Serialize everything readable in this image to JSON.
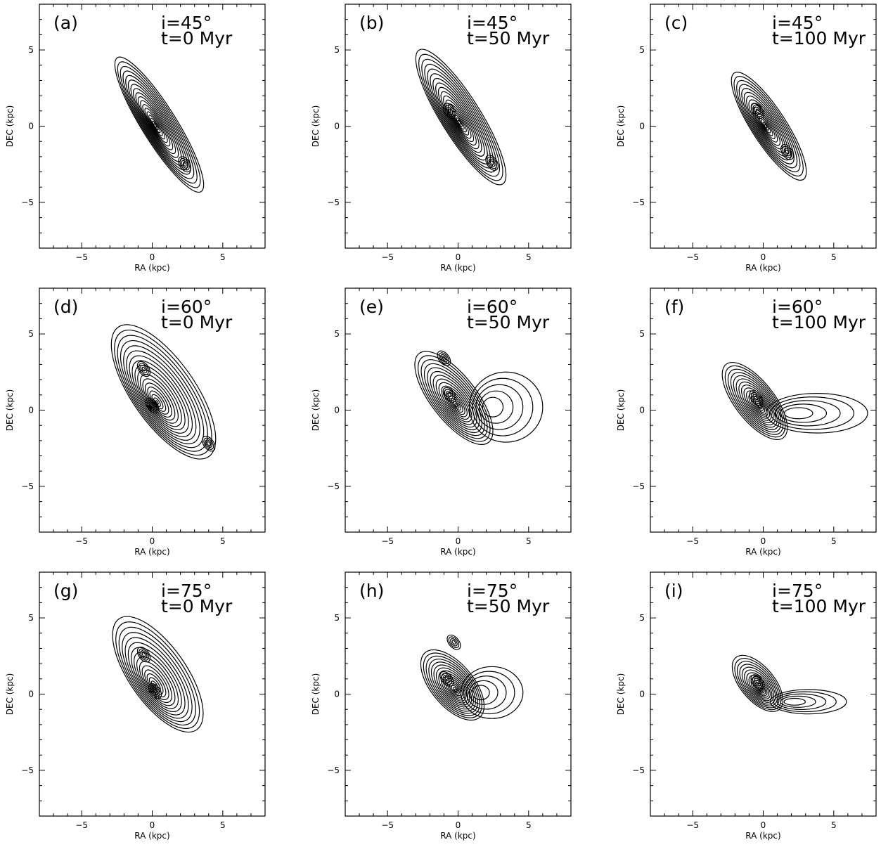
{
  "chart_data": {
    "type": "contour",
    "xlabel": "RA (kpc)",
    "ylabel": "DEC (kpc)",
    "xlim": [
      -8,
      8
    ],
    "ylim": [
      -8,
      8
    ],
    "major_ticks": [
      -5,
      0,
      5
    ],
    "tick_labels": [
      "−5",
      "0",
      "5"
    ],
    "grid": false,
    "panels": [
      {
        "label": "(a)",
        "inclination": "i=45°",
        "time": "t=0 Myr",
        "pa_deg": 32,
        "semi_major_kpc": 5.6,
        "axis_ratio": 0.22,
        "center": [
          0.5,
          0.1
        ],
        "levels": 18,
        "knots": [
          [
            2.3,
            -2.5
          ]
        ],
        "plume": null
      },
      {
        "label": "(b)",
        "inclination": "i=45°",
        "time": "t=50 Myr",
        "pa_deg": 32,
        "semi_major_kpc": 5.6,
        "axis_ratio": 0.25,
        "center": [
          0.2,
          0.6
        ],
        "levels": 18,
        "knots": [
          [
            -0.6,
            1.0
          ],
          [
            2.4,
            -2.4
          ]
        ],
        "plume": null
      },
      {
        "label": "(c)",
        "inclination": "i=45°",
        "time": "t=100 Myr",
        "pa_deg": 33,
        "semi_major_kpc": 4.5,
        "axis_ratio": 0.27,
        "center": [
          0.4,
          0.0
        ],
        "levels": 16,
        "knots": [
          [
            -0.4,
            1.0
          ],
          [
            1.7,
            -1.7
          ]
        ],
        "plume": null
      },
      {
        "label": "(d)",
        "inclination": "i=60°",
        "time": "t=0 Myr",
        "pa_deg": 35,
        "semi_major_kpc": 5.6,
        "axis_ratio": 0.4,
        "center": [
          0.8,
          1.2
        ],
        "levels": 18,
        "knots": [
          [
            -0.6,
            2.7
          ],
          [
            0.0,
            0.3
          ],
          [
            4.0,
            -2.2
          ]
        ],
        "plume": null
      },
      {
        "label": "(e)",
        "inclination": "i=60°",
        "time": "t=50 Myr",
        "pa_deg": 38,
        "semi_major_kpc": 4.0,
        "axis_ratio": 0.4,
        "center": [
          -0.3,
          0.8
        ],
        "levels": 16,
        "knots": [
          [
            -1.0,
            3.4
          ],
          [
            -0.6,
            1.0
          ]
        ],
        "plume": {
          "center": [
            3.4,
            0.2
          ],
          "rx": 2.6,
          "ry": 2.3
        }
      },
      {
        "label": "(f)",
        "inclination": "i=60°",
        "time": "t=100 Myr",
        "pa_deg": 38,
        "semi_major_kpc": 3.3,
        "axis_ratio": 0.42,
        "center": [
          -0.6,
          0.6
        ],
        "levels": 16,
        "knots": [
          [
            -0.5,
            0.8
          ]
        ],
        "plume": {
          "center": [
            3.8,
            -0.2
          ],
          "rx": 3.6,
          "ry": 1.3
        }
      },
      {
        "label": "(g)",
        "inclination": "i=75°",
        "time": "t=0 Myr",
        "pa_deg": 35,
        "semi_major_kpc": 4.8,
        "axis_ratio": 0.42,
        "center": [
          0.4,
          1.3
        ],
        "levels": 16,
        "knots": [
          [
            -0.6,
            2.6
          ],
          [
            0.2,
            0.2
          ]
        ],
        "plume": null
      },
      {
        "label": "(h)",
        "inclination": "i=75°",
        "time": "t=50 Myr",
        "pa_deg": 40,
        "semi_major_kpc": 3.0,
        "axis_ratio": 0.5,
        "center": [
          -0.4,
          0.6
        ],
        "levels": 16,
        "knots": [
          [
            -0.3,
            3.4
          ],
          [
            -0.8,
            1.0
          ]
        ],
        "plume": {
          "center": [
            2.4,
            0.1
          ],
          "rx": 2.2,
          "ry": 1.7
        }
      },
      {
        "label": "(i)",
        "inclination": "i=75°",
        "time": "t=100 Myr",
        "pa_deg": 40,
        "semi_major_kpc": 2.4,
        "axis_ratio": 0.5,
        "center": [
          -0.4,
          0.7
        ],
        "levels": 14,
        "knots": [
          [
            -0.4,
            0.8
          ]
        ],
        "plume": {
          "center": [
            3.2,
            -0.5
          ],
          "rx": 2.7,
          "ry": 0.8
        }
      }
    ]
  }
}
